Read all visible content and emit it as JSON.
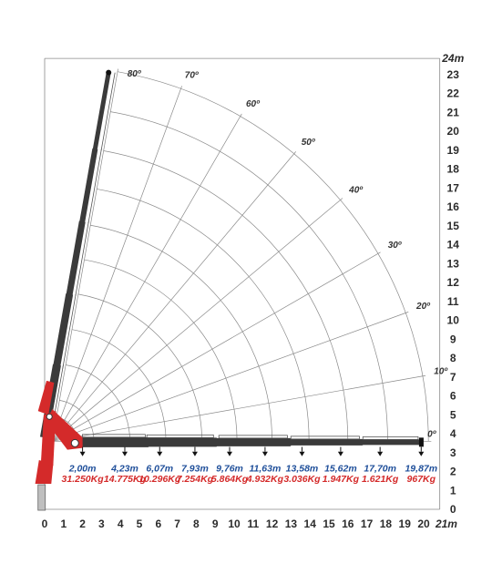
{
  "chart_data": {
    "type": "diagram",
    "x_unit": "21m",
    "y_unit": "24m",
    "x_ticks": [
      "0",
      "1",
      "2",
      "3",
      "4",
      "5",
      "6",
      "7",
      "8",
      "9",
      "10",
      "11",
      "12",
      "13",
      "14",
      "15",
      "16",
      "17",
      "18",
      "19",
      "20"
    ],
    "y_ticks": [
      "0",
      "1",
      "2",
      "3",
      "4",
      "5",
      "6",
      "7",
      "8",
      "9",
      "10",
      "11",
      "12",
      "13",
      "14",
      "15",
      "16",
      "17",
      "18",
      "19",
      "20",
      "21",
      "22",
      "23"
    ],
    "angles": [
      {
        "label": "80º",
        "deg": 80
      },
      {
        "label": "70º",
        "deg": 70
      },
      {
        "label": "60º",
        "deg": 60
      },
      {
        "label": "50º",
        "deg": 50
      },
      {
        "label": "40º",
        "deg": 40
      },
      {
        "label": "30º",
        "deg": 30
      },
      {
        "label": "20º",
        "deg": 20
      },
      {
        "label": "10º",
        "deg": 10
      },
      {
        "label": "0º",
        "deg": 0
      }
    ],
    "ratings": [
      {
        "reach": "2,00m",
        "reach_m": 2.0,
        "load": "31.250Kg"
      },
      {
        "reach": "4,23m",
        "reach_m": 4.23,
        "load": "14.775Kg"
      },
      {
        "reach": "6,07m",
        "reach_m": 6.07,
        "load": "10.296Kg"
      },
      {
        "reach": "7,93m",
        "reach_m": 7.93,
        "load": "7.254Kg"
      },
      {
        "reach": "9,76m",
        "reach_m": 9.76,
        "load": "5.864Kg"
      },
      {
        "reach": "11,63m",
        "reach_m": 11.63,
        "load": "4.932Kg"
      },
      {
        "reach": "13,58m",
        "reach_m": 13.58,
        "load": "3.036Kg"
      },
      {
        "reach": "15,62m",
        "reach_m": 15.62,
        "load": "1.947Kg"
      },
      {
        "reach": "17,70m",
        "reach_m": 17.7,
        "load": "1.621Kg"
      },
      {
        "reach": "19,87m",
        "reach_m": 19.87,
        "load": "967Kg"
      }
    ],
    "colors": {
      "grid": "#8a8a8a",
      "boom": "#3a3a3a",
      "crane": "#d42a2a",
      "reach": "#1f4f9a",
      "load": "#d42a2a"
    }
  }
}
